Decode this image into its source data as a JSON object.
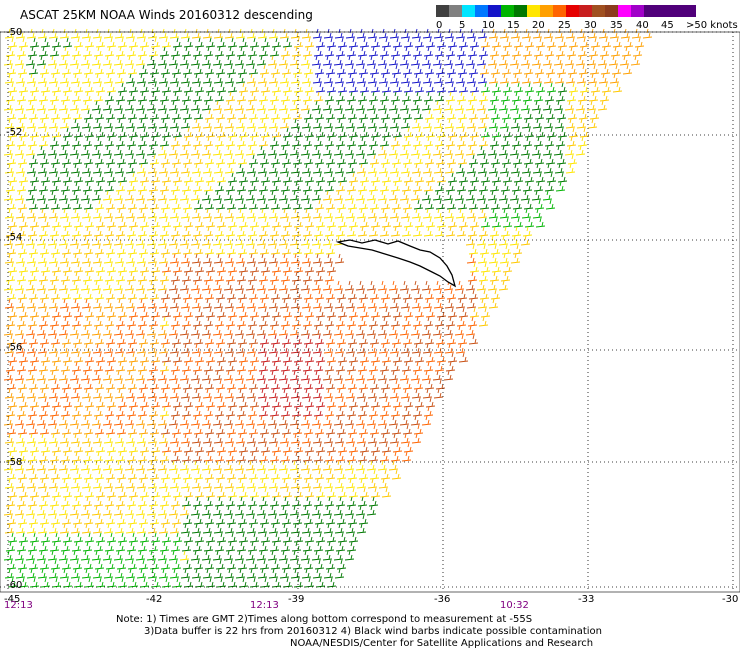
{
  "title": "ASCAT 25KM NOAA Winds 20160312 descending",
  "legend": {
    "labels": [
      "0",
      "5",
      "10",
      "15",
      "20",
      "25",
      "30",
      "35",
      "40",
      "45",
      ">50 knots"
    ],
    "colors": [
      "#404040",
      "#808080",
      "#00e5ff",
      "#0078ff",
      "#1414c8",
      "#00b400",
      "#007800",
      "#ffe600",
      "#ffa000",
      "#ff6400",
      "#e60000",
      "#c81e1e",
      "#a05020",
      "#8c3c1e",
      "#ff00ff",
      "#a000c8",
      "#50007a"
    ]
  },
  "latitudes": [
    "-50",
    "-52",
    "-54",
    "-56",
    "-58",
    "-60"
  ],
  "longitudes": [
    "-45",
    "-42",
    "-39",
    "-36",
    "-33",
    "-30"
  ],
  "times": [
    "12:13",
    "12:13",
    "10:32"
  ],
  "notes": {
    "line1": "Note: 1) Times are GMT 2)Times along bottom correspond to measurement at -55S",
    "line2": "3)Data buffer is 22 hrs from 20160312 4) Black wind barbs indicate possible contamination",
    "line3": "NOAA/NESDIS/Center for Satellite Applications and Research"
  }
}
